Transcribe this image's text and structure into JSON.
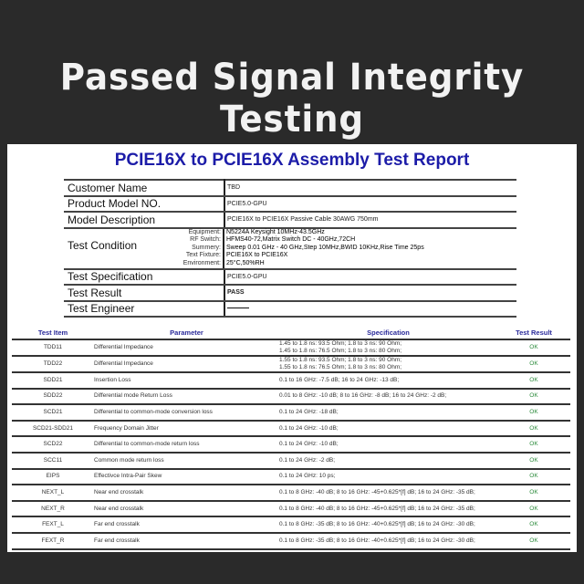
{
  "banner": "Passed Signal Integrity Testing",
  "report": {
    "title": "PCIE16X to PCIE16X Assembly Test Report",
    "customer_name": {
      "label": "Customer Name",
      "value": "TBD"
    },
    "product_model": {
      "label": "Product Model NO.",
      "value": "PCIE5.0-GPU"
    },
    "model_description": {
      "label": "Model Description",
      "value": "PCIE16X to PCIE16X Passive Cable  30AWG 750mm"
    },
    "test_condition": {
      "label": "Test Condition",
      "items": [
        {
          "key": "Equipment:",
          "value": "N5224A Keysight 10MHz-43.5GHz"
        },
        {
          "key": "RF Switch:",
          "value": "HFMS40-72,Matrix Switch DC - 40GHz,72CH"
        },
        {
          "key": "Summery:",
          "value": "Sweep 0.01 GHz - 40 GHz,Step 10MHz,BWID 10KHz,Rise Time 25ps"
        },
        {
          "key": "Text Fixture:",
          "value": "PCIE16X to PCIE16X"
        },
        {
          "key": "Environment:",
          "value": "25°C,50%RH"
        }
      ]
    },
    "test_specification": {
      "label": "Test Specification",
      "value": "PCIE5.0-GPU"
    },
    "test_result": {
      "label": "Test Result",
      "value": "PASS"
    },
    "test_engineer": {
      "label": "Test Engineer"
    }
  },
  "tests": {
    "headers": [
      "Test Item",
      "Parameter",
      "Specification",
      "Test Result"
    ],
    "rows": [
      {
        "item": "TDD11",
        "param": "Differential Impedance",
        "spec": "1.45 to 1.8 ns: 93.5 Ohm; 1.8 to 3 ns: 90 Ohm;",
        "spec2": "1.45 to 1.8 ns: 76.5 Ohm; 1.8 to 3 ns: 80 Ohm;",
        "result": "OK"
      },
      {
        "item": "TDD22",
        "param": "Differential Impedance",
        "spec": "1.55 to 1.8 ns: 93.5 Ohm; 1.8 to 3 ns: 90 Ohm;",
        "spec2": "1.55 to 1.8 ns: 76.5 Ohm; 1.8 to 3 ns: 80 Ohm;",
        "result": "OK"
      },
      {
        "item": "SDD21",
        "param": "Insertion Loss",
        "spec": "0.1 to 16 GHz: -7.5 dB; 16 to 24 GHz: -13 dB;",
        "result": "OK"
      },
      {
        "item": "SDD22",
        "param": "Differential mode Return Loss",
        "spec": "0.01 to 8 GHz: -10 dB; 8 to 16 GHz: -8 dB; 16 to 24 GHz: -2 dB;",
        "result": "OK"
      },
      {
        "item": "SCD21",
        "param": "Differential to common-mode conversion loss",
        "spec": "0.1 to 24 GHz: -18 dB;",
        "result": "OK"
      },
      {
        "item": "SCD21-SDD21",
        "param": "Frequency Domain Jitter",
        "spec": "0.1 to 24 GHz: -10 dB;",
        "result": "OK"
      },
      {
        "item": "SCD22",
        "param": "Differential to common-mode return loss",
        "spec": "0.1 to 24 GHz: -10 dB;",
        "result": "OK"
      },
      {
        "item": "SCC11",
        "param": "Common mode return loss",
        "spec": "0.1 to 24 GHz: -2 dB;",
        "result": "OK"
      },
      {
        "item": "EIPS",
        "param": "Effectivce Intra-Pair Skew",
        "spec": "0.1 to 24 GHz: 10 ps;",
        "result": "OK"
      },
      {
        "item": "NEXT_L",
        "param": "Near end crosstalk",
        "spec": "0.1 to 8 GHz: -40 dB; 8 to 16 GHz: -45+0.625*[f] dB; 16 to 24 GHz: -35 dB;",
        "result": "OK"
      },
      {
        "item": "NEXT_R",
        "param": "Near end crosstalk",
        "spec": "0.1 to 8 GHz: -40 dB; 8 to 16 GHz: -45+0.625*[f] dB; 16 to 24 GHz: -35 dB;",
        "result": "OK"
      },
      {
        "item": "FEXT_L",
        "param": "Far end crosstalk",
        "spec": "0.1 to 8 GHz: -35 dB; 8 to 16 GHz: -40+0.625*[f] dB; 16 to 24 GHz: -30 dB;",
        "result": "OK"
      },
      {
        "item": "FEXT_R",
        "param": "Far end crosstalk",
        "spec": "0.1 to 8 GHz: -35 dB; 8 to 16 GHz: -40+0.625*[f] dB; 16 to 24 GHz: -30 dB;",
        "result": "OK"
      }
    ]
  }
}
